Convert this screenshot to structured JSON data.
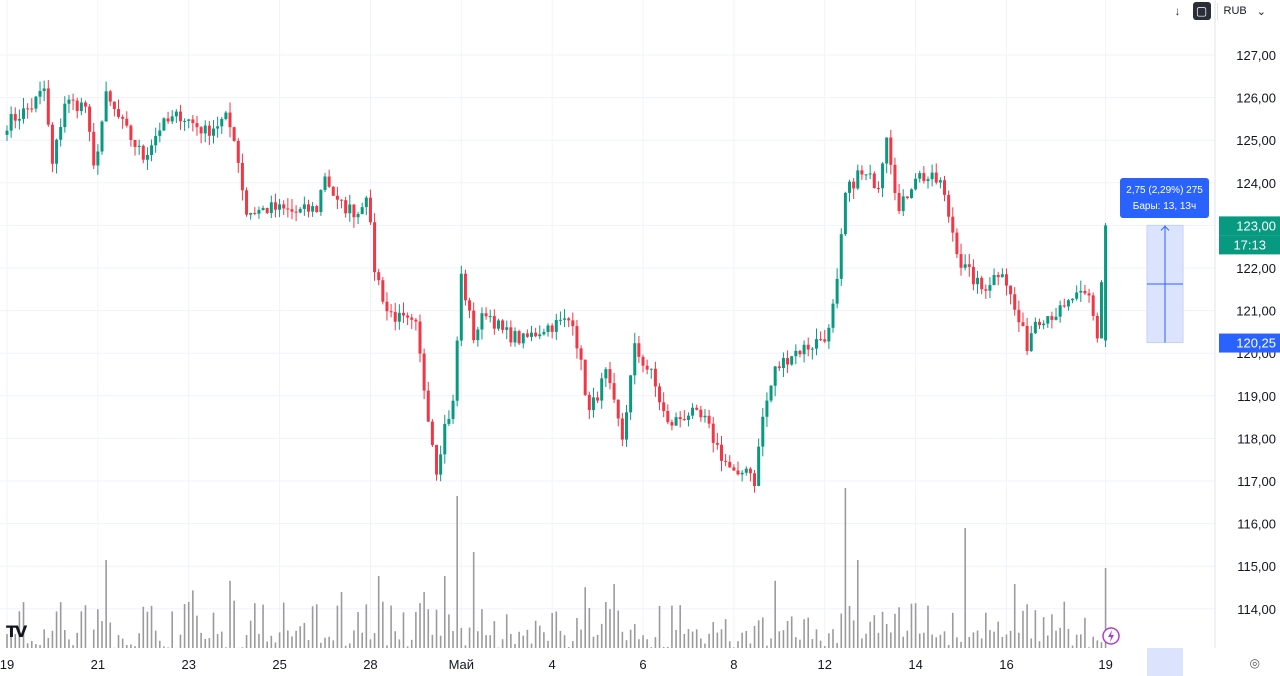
{
  "toolbar": {
    "down_arrow_icon": "arrow-down-icon",
    "mode_icon": "rounded-square-icon",
    "currency": "RUB",
    "currency_chevron": "⌄"
  },
  "logo_text": "TV",
  "measure": {
    "line1": "2,75 (2,29%) 275",
    "line2": "Бары: 13, 13ч",
    "from_price": 120.25,
    "to_price": 123.0
  },
  "labels": {
    "last_price": "123,00",
    "countdown": "17:13",
    "measure_low": "120,25"
  },
  "colors": {
    "up": "#089981",
    "down": "#f23645",
    "volume": "#9b9b9b",
    "measure": "#2962ff",
    "measure_fill": "#dce4fd",
    "grid": "#f0f3fa",
    "text": "#131722"
  },
  "chart_data": {
    "type": "candlestick",
    "ylim": [
      113.5,
      127.6
    ],
    "y_ticks": [
      "127,00",
      "126,00",
      "125,00",
      "124,00",
      "123,00",
      "122,00",
      "121,00",
      "120,00",
      "119,00",
      "118,00",
      "117,00",
      "116,00",
      "115,00",
      "114,00"
    ],
    "y_tick_values": [
      127,
      126,
      125,
      124,
      123,
      122,
      121,
      120,
      119,
      118,
      117,
      116,
      115,
      114
    ],
    "x_ticks": [
      "19",
      "21",
      "23",
      "25",
      "28",
      "Май",
      "4",
      "6",
      "8",
      "12",
      "14",
      "16",
      "19"
    ],
    "x_tick_index": [
      0,
      22,
      44,
      66,
      88,
      110,
      132,
      154,
      176,
      198,
      220,
      242,
      266
    ],
    "keyframes": [
      [
        0,
        125.4
      ],
      [
        6,
        125.8
      ],
      [
        9,
        126.2
      ],
      [
        11,
        124.4
      ],
      [
        14,
        125.9
      ],
      [
        19,
        125.8
      ],
      [
        21,
        124.3
      ],
      [
        24,
        126.0
      ],
      [
        29,
        125.2
      ],
      [
        33,
        124.6
      ],
      [
        37,
        125.3
      ],
      [
        42,
        125.6
      ],
      [
        48,
        125.2
      ],
      [
        53,
        125.5
      ],
      [
        55,
        125.1
      ],
      [
        58,
        123.3
      ],
      [
        64,
        123.4
      ],
      [
        70,
        123.3
      ],
      [
        75,
        123.4
      ],
      [
        77,
        124.2
      ],
      [
        80,
        123.5
      ],
      [
        85,
        123.3
      ],
      [
        87,
        123.8
      ],
      [
        89,
        122.0
      ],
      [
        92,
        121.0
      ],
      [
        95,
        120.8
      ],
      [
        99,
        120.6
      ],
      [
        101,
        119.2
      ],
      [
        104,
        117.3
      ],
      [
        106,
        118.3
      ],
      [
        108,
        118.8
      ],
      [
        110,
        121.8
      ],
      [
        113,
        120.4
      ],
      [
        116,
        121.0
      ],
      [
        120,
        120.5
      ],
      [
        125,
        120.3
      ],
      [
        130,
        120.6
      ],
      [
        137,
        120.8
      ],
      [
        139,
        119.7
      ],
      [
        141,
        118.6
      ],
      [
        145,
        119.5
      ],
      [
        149,
        118.0
      ],
      [
        152,
        120.1
      ],
      [
        156,
        119.5
      ],
      [
        160,
        118.3
      ],
      [
        165,
        118.6
      ],
      [
        169,
        118.4
      ],
      [
        173,
        117.6
      ],
      [
        177,
        117.0
      ],
      [
        179,
        117.4
      ],
      [
        181,
        117.0
      ],
      [
        183,
        118.5
      ],
      [
        186,
        119.6
      ],
      [
        190,
        120.0
      ],
      [
        195,
        120.2
      ],
      [
        199,
        120.5
      ],
      [
        201,
        121.6
      ],
      [
        203,
        123.7
      ],
      [
        206,
        124.2
      ],
      [
        211,
        124.0
      ],
      [
        213,
        125.2
      ],
      [
        216,
        123.3
      ],
      [
        220,
        124.2
      ],
      [
        226,
        124.0
      ],
      [
        231,
        122.1
      ],
      [
        236,
        121.5
      ],
      [
        241,
        122.0
      ],
      [
        244,
        121.0
      ],
      [
        247,
        120.2
      ],
      [
        249,
        120.8
      ],
      [
        252,
        120.9
      ],
      [
        256,
        121.0
      ],
      [
        258,
        121.3
      ],
      [
        262,
        121.3
      ],
      [
        264,
        120.4
      ],
      [
        266,
        123.0
      ]
    ],
    "volume_spikes": [
      [
        24,
        0.55
      ],
      [
        45,
        0.36
      ],
      [
        54,
        0.42
      ],
      [
        60,
        0.28
      ],
      [
        81,
        0.35
      ],
      [
        90,
        0.45
      ],
      [
        101,
        0.35
      ],
      [
        106,
        0.45
      ],
      [
        109,
        0.95
      ],
      [
        113,
        0.6
      ],
      [
        140,
        0.38
      ],
      [
        147,
        0.4
      ],
      [
        186,
        0.42
      ],
      [
        203,
        1.0
      ],
      [
        206,
        0.55
      ],
      [
        220,
        0.28
      ],
      [
        232,
        0.75
      ],
      [
        244,
        0.4
      ],
      [
        266,
        0.5
      ]
    ],
    "bars": 267,
    "bar_interval": "1h"
  }
}
